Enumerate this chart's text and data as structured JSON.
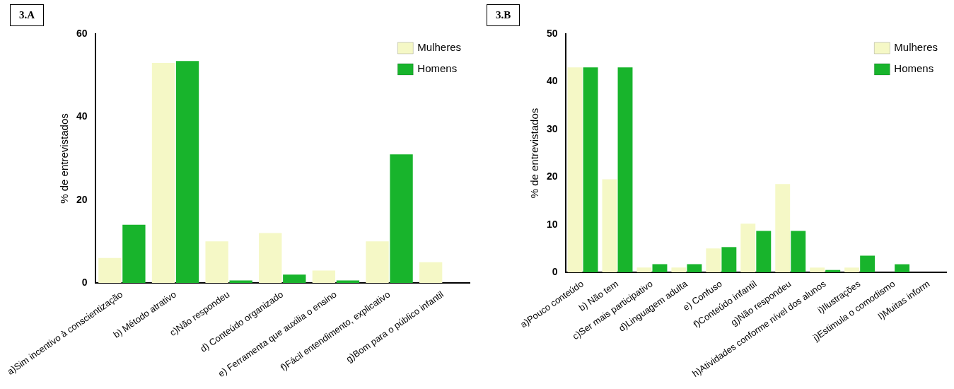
{
  "chart_data": [
    {
      "type": "bar",
      "title": "3.A",
      "ylabel": "% de entrevistados",
      "categories": [
        "a)Sim incentivo à conscientização",
        "b) Método atrativo",
        "c)Não respondeu",
        "d) Conteúdo organizado",
        "e) Ferramenta que auxilia o ensino",
        "f)Fácil entendimento, explicativo",
        "g)Bom para o público infantil"
      ],
      "series": [
        {
          "name": "Mulheres",
          "color": "#f5f8c6",
          "values": [
            6,
            53,
            10,
            12,
            3,
            10,
            5
          ]
        },
        {
          "name": "Homens",
          "color": "#18b42c",
          "values": [
            14,
            53.5,
            0.6,
            2,
            0.6,
            31,
            0
          ]
        }
      ],
      "ylim": [
        0,
        60
      ],
      "yticks": [
        0,
        20,
        40,
        60
      ],
      "grid": false,
      "legend": "top right"
    },
    {
      "type": "bar",
      "title": "3.B",
      "ylabel": "% de entrevistados",
      "categories": [
        "a)Pouco conteúdo",
        "b) Não tem",
        "c)Ser mais participativo",
        "d)Linguagem adulta",
        "e) Confuso",
        "f)Conteúdo infantil",
        "g)Não respondeu",
        "h)Atividades conforme nível dos alunos",
        "i)Ilustrações",
        "j)Estimula o comodismo",
        "l)Muitas inform"
      ],
      "series": [
        {
          "name": "Mulheres",
          "color": "#f5f8c6",
          "values": [
            43,
            19.5,
            1,
            1,
            5,
            10.2,
            18.5,
            1,
            1,
            0,
            null
          ]
        },
        {
          "name": "Homens",
          "color": "#18b42c",
          "values": [
            43,
            43,
            1.7,
            1.7,
            5.3,
            8.7,
            8.7,
            0.5,
            3.5,
            1.7,
            null
          ]
        }
      ],
      "ylim": [
        0,
        50
      ],
      "yticks": [
        0,
        10,
        20,
        30,
        40,
        50
      ],
      "grid": false,
      "legend": "top right"
    }
  ]
}
